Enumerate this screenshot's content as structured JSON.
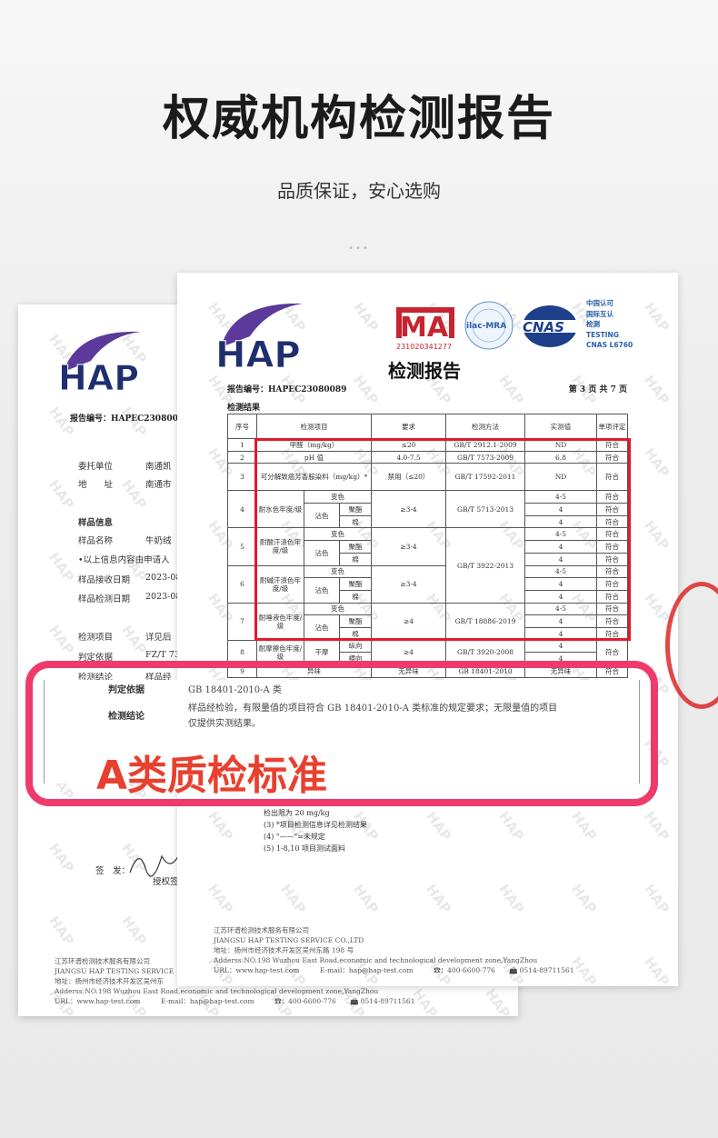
{
  "header": {
    "title": "权威机构检测报告",
    "subtitle": "品质保证，安心选购",
    "dots": "•••"
  },
  "colors": {
    "accent_pink": "#ef3a6c",
    "highlight_red": "#e0192e",
    "tag_text": "#e8402f",
    "logo_purple": "#5b3a9b",
    "logo_navy": "#1f2f6e"
  },
  "watermark": "HAP",
  "back_report": {
    "logo": "HAP",
    "report_no": "报告编号：HAPEC2308008",
    "fields": [
      {
        "label": "委托单位",
        "value": "南通凯"
      },
      {
        "label": "地　　址",
        "value": "南通市"
      },
      {
        "label": "样品信息",
        "value": ""
      },
      {
        "label": "样品名称",
        "value": "牛奶绒"
      },
      {
        "label": "•以上信息内容由申请人",
        "value": ""
      },
      {
        "label": "样品接收日期",
        "value": "2023-08"
      },
      {
        "label": "样品检测日期",
        "value": "2023-08"
      },
      {
        "label": "检测项目",
        "value": "详见后"
      },
      {
        "label": "判定依据",
        "value": "FZ/T 73"
      },
      {
        "label": "检测结论",
        "value": "样品经"
      }
    ],
    "sign_label": "签　发：",
    "sign_sub": "授权签",
    "footer": [
      "江苏环谱检测技术服务有限公司",
      "JIANGSU HAP TESTING SERVICE",
      "地址：扬州市经济技术开发区吴州东",
      "Adderss:NO.198 Wuzhou East Road,economic and technological development zone,YangZhou",
      "URL：www.hap-test.com　　　E-mail：hap@hap-test.com　　　☎：400-6600-776　　📠 0514-89711561"
    ]
  },
  "front_report": {
    "logo": "HAP",
    "cma_number": "231020341277",
    "ilac": "ilac-MRA",
    "cnas": "CNAS",
    "cnas_text": [
      "中国认可",
      "国际互认",
      "检测",
      "TESTING",
      "CNAS L6760"
    ],
    "doc_title": "检测报告",
    "report_no": "报告编号：HAPEC23080089",
    "page": "第 3 页 共 7 页",
    "section": "检测结果",
    "table": {
      "headers": [
        "序号",
        "检测项目",
        "要求",
        "检测方法",
        "实测值",
        "单项评定"
      ],
      "rows": [
        {
          "no": "1",
          "item": "甲醛（mg/kg）",
          "req": "≤20",
          "method": "GB/T 2912.1-2009",
          "results": [
            "ND"
          ],
          "verdicts": [
            "符合"
          ]
        },
        {
          "no": "2",
          "item": "pH 值",
          "req": "4.0-7.5",
          "method": "GB/T 7573-2009",
          "results": [
            "6.8"
          ],
          "verdicts": [
            "符合"
          ]
        },
        {
          "no": "3",
          "item": "可分解致癌芳香胺染料（mg/kg）*",
          "req": "禁用（≤20）",
          "method": "GB/T 17592-2011",
          "results": [
            "ND"
          ],
          "verdicts": [
            "符合"
          ],
          "tall": true
        },
        {
          "no": "4",
          "item": "耐水色牢度/级",
          "first": "变色",
          "group": "沾色",
          "subs": [
            "聚酯",
            "棉"
          ],
          "req": "≥3-4",
          "method": "GB/T 5713-2013",
          "results": [
            "4-5",
            "4",
            "4"
          ],
          "verdicts": [
            "符合",
            "符合",
            "符合"
          ]
        },
        {
          "no": "5",
          "item": "耐酸汗渍色牢度/级",
          "first": "变色",
          "group": "沾色",
          "subs": [
            "聚酯",
            "棉"
          ],
          "req": "≥3-4",
          "method": "GB/T 3922-2013",
          "results": [
            "4-5",
            "4",
            "4"
          ],
          "verdicts": [
            "符合",
            "符合",
            "符合"
          ]
        },
        {
          "no": "6",
          "item": "耐碱汗渍色牢度/级",
          "first": "变色",
          "group": "沾色",
          "subs": [
            "聚酯",
            "棉"
          ],
          "req": "≥3-4",
          "results": [
            "4-5",
            "4",
            "4"
          ],
          "verdicts": [
            "符合",
            "符合",
            "符合"
          ]
        },
        {
          "no": "7",
          "item": "耐唾液色牢度/级",
          "first": "变色",
          "group": "沾色",
          "subs": [
            "聚酯",
            "棉"
          ],
          "req": "≥4",
          "method": "GB/T 18886-2019",
          "results": [
            "4-5",
            "4",
            "4"
          ],
          "verdicts": [
            "符合",
            "符合",
            "符合"
          ]
        },
        {
          "no": "8",
          "item": "耐摩擦色牢度/级",
          "group": "干摩",
          "subs": [
            "纵向",
            "横向"
          ],
          "req": "≥4",
          "method": "GB/T 3920-2008",
          "results": [
            "4",
            "4"
          ],
          "verdicts": [
            "符合"
          ]
        },
        {
          "no": "9",
          "item": "异味",
          "req": "无异味",
          "method": "GB 18401-2010",
          "results": [
            "无异味"
          ],
          "verdicts": [
            "符合"
          ]
        }
      ]
    },
    "notes": [
      "检出限为 20 mg/kg",
      "(3) *项目检测信息详见检测结果",
      "(4) \"——\"=未规定",
      "(5) 1-8,10 项目测试面料"
    ],
    "footer": [
      "江苏环谱检测技术服务有限公司",
      "JIANGSU HAP TESTING SERVICE CO.,LTD",
      "地址：扬州市经济技术开发区吴州东路 198 号",
      "Adderss:NO.198 Wuzhou East Road,economic and technological development zone,YangZhou",
      "URL：www.hap-test.com　　　E-mail：hap@hap-test.com　　　☎：400-6600-776　　📠 0514-89711561"
    ]
  },
  "callout": {
    "basis_label": "判定依据",
    "basis_value": "GB 18401-2010-A 类",
    "conclusion_label": "检测结论",
    "conclusion_lines": [
      "样品经检验，有限量值的项目符合 GB 18401-2010-A 类标准的规定要求；无限量值的项目",
      "仅提供实测结果。"
    ],
    "tag": "A类质检标准"
  }
}
